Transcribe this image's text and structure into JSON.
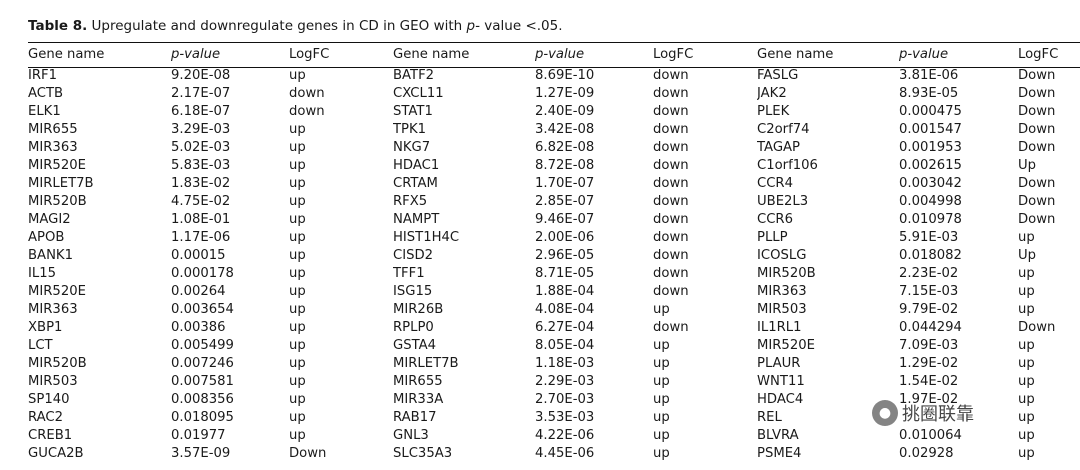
{
  "caption": {
    "label": "Table 8.",
    "text": "Upregulate and downregulate genes in CD in GEO with",
    "pvalue_word": "p-",
    "tail": "value <.05."
  },
  "headers": [
    "Gene name",
    "p-value",
    "LogFC",
    "Gene name",
    "p-value",
    "LogFC",
    "Gene name",
    "p-value",
    "LogFC"
  ],
  "rows": [
    [
      "IRF1",
      "9.20E-08",
      "up",
      "BATF2",
      "8.69E-10",
      "down",
      "FASLG",
      "3.81E-06",
      "Down"
    ],
    [
      "ACTB",
      "2.17E-07",
      "down",
      "CXCL11",
      "1.27E-09",
      "down",
      "JAK2",
      "8.93E-05",
      "Down"
    ],
    [
      "ELK1",
      "6.18E-07",
      "down",
      "STAT1",
      "2.40E-09",
      "down",
      "PLEK",
      "0.000475",
      "Down"
    ],
    [
      "MIR655",
      "3.29E-03",
      "up",
      "TPK1",
      "3.42E-08",
      "down",
      "C2orf74",
      "0.001547",
      "Down"
    ],
    [
      "MIR363",
      "5.02E-03",
      "up",
      "NKG7",
      "6.82E-08",
      "down",
      "TAGAP",
      "0.001953",
      "Down"
    ],
    [
      "MIR520E",
      "5.83E-03",
      "up",
      "HDAC1",
      "8.72E-08",
      "down",
      "C1orf106",
      "0.002615",
      "Up"
    ],
    [
      "MIRLET7B",
      "1.83E-02",
      "up",
      "CRTAM",
      "1.70E-07",
      "down",
      "CCR4",
      "0.003042",
      "Down"
    ],
    [
      "MIR520B",
      "4.75E-02",
      "up",
      "RFX5",
      "2.85E-07",
      "down",
      "UBE2L3",
      "0.004998",
      "Down"
    ],
    [
      "MAGI2",
      "1.08E-01",
      "up",
      "NAMPT",
      "9.46E-07",
      "down",
      "CCR6",
      "0.010978",
      "Down"
    ],
    [
      "APOB",
      "1.17E-06",
      "up",
      "HIST1H4C",
      "2.00E-06",
      "down",
      "PLLP",
      "5.91E-03",
      "up"
    ],
    [
      "BANK1",
      "0.00015",
      "up",
      "CISD2",
      "2.96E-05",
      "down",
      "ICOSLG",
      "0.018082",
      "Up"
    ],
    [
      "IL15",
      "0.000178",
      "up",
      "TFF1",
      "8.71E-05",
      "down",
      "MIR520B",
      "2.23E-02",
      "up"
    ],
    [
      "MIR520E",
      "0.00264",
      "up",
      "ISG15",
      "1.88E-04",
      "down",
      "MIR363",
      "7.15E-03",
      "up"
    ],
    [
      "MIR363",
      "0.003654",
      "up",
      "MIR26B",
      "4.08E-04",
      "up",
      "MIR503",
      "9.79E-02",
      "up"
    ],
    [
      "XBP1",
      "0.00386",
      "up",
      "RPLP0",
      "6.27E-04",
      "down",
      "IL1RL1",
      "0.044294",
      "Down"
    ],
    [
      "LCT",
      "0.005499",
      "up",
      "GSTA4",
      "8.05E-04",
      "up",
      "MIR520E",
      "7.09E-03",
      "up"
    ],
    [
      "MIR520B",
      "0.007246",
      "up",
      "MIRLET7B",
      "1.18E-03",
      "up",
      "PLAUR",
      "1.29E-02",
      "up"
    ],
    [
      "MIR503",
      "0.007581",
      "up",
      "MIR655",
      "2.29E-03",
      "up",
      "WNT11",
      "1.54E-02",
      "up"
    ],
    [
      "SP140",
      "0.008356",
      "up",
      "MIR33A",
      "2.70E-03",
      "up",
      "HDAC4",
      "1.97E-02",
      "up"
    ],
    [
      "RAC2",
      "0.018095",
      "up",
      "RAB17",
      "3.53E-03",
      "up",
      "REL",
      "",
      "up"
    ],
    [
      "CREB1",
      "0.01977",
      "up",
      "GNL3",
      "4.22E-06",
      "up",
      "BLVRA",
      "0.010064",
      "up"
    ],
    [
      "GUCA2B",
      "3.57E-09",
      "Down",
      "SLC35A3",
      "4.45E-06",
      "up",
      "PSME4",
      "0.02928",
      "up"
    ]
  ],
  "watermark": {
    "text": "挑圈联靠",
    "icon": "wechat-icon"
  }
}
